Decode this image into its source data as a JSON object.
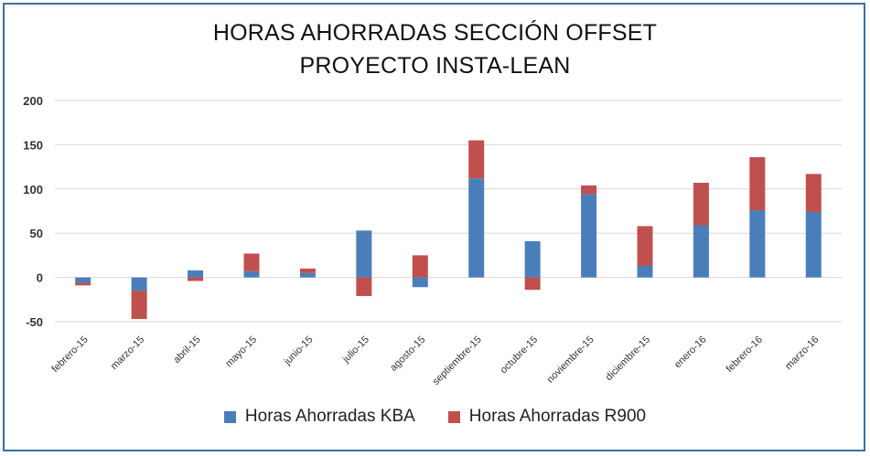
{
  "chart_data": {
    "type": "bar",
    "stacked": true,
    "title": "HORAS AHORRADAS SECCIÓN OFFSET",
    "subtitle": "PROYECTO INSTA-LEAN",
    "categories": [
      "febrero-15",
      "marzo-15",
      "abril-15",
      "mayo-15",
      "junio-15",
      "julio-15",
      "agosto-15",
      "septiembre-15",
      "octubre-15",
      "noviembre-15",
      "diciembre-15",
      "enero-16",
      "febrero-16",
      "marzo-16"
    ],
    "series": [
      {
        "name": "Horas Ahorradas KBA",
        "color": "#4a7ebb",
        "values": [
          -6,
          -15,
          8,
          7,
          5,
          53,
          -11,
          112,
          41,
          94,
          13,
          59,
          76,
          74
        ]
      },
      {
        "name": "Horas Ahorradas R900",
        "color": "#c0504d",
        "values": [
          -3,
          -32,
          -4,
          20,
          5,
          -21,
          25,
          43,
          -14,
          10,
          45,
          48,
          60,
          43
        ]
      }
    ],
    "ylim": [
      -50,
      200
    ],
    "yticks": [
      -50,
      0,
      50,
      100,
      150,
      200
    ],
    "grid": true,
    "legend": "bottom"
  }
}
